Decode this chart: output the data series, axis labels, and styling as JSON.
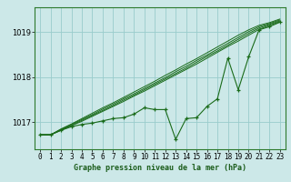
{
  "bg_color": "#cce8e8",
  "grid_color": "#99cccc",
  "line_color": "#1a6b1a",
  "xlabel": "Graphe pression niveau de la mer (hPa)",
  "xlim": [
    -0.5,
    23.5
  ],
  "ylim": [
    1016.4,
    1019.55
  ],
  "yticks": [
    1017,
    1018,
    1019
  ],
  "xticks": [
    0,
    1,
    2,
    3,
    4,
    5,
    6,
    7,
    8,
    9,
    10,
    11,
    12,
    13,
    14,
    15,
    16,
    17,
    18,
    19,
    20,
    21,
    22,
    23
  ],
  "main_x": [
    0,
    1,
    2,
    3,
    4,
    5,
    6,
    7,
    8,
    9,
    10,
    11,
    12,
    13,
    14,
    15,
    16,
    17,
    18,
    19,
    20,
    21,
    22,
    23
  ],
  "main_y": [
    1016.72,
    1016.72,
    1016.82,
    1016.9,
    1016.95,
    1016.98,
    1017.03,
    1017.08,
    1017.1,
    1017.18,
    1017.32,
    1017.28,
    1017.28,
    1016.62,
    1017.08,
    1017.1,
    1017.35,
    1017.52,
    1018.42,
    1017.72,
    1018.45,
    1019.05,
    1019.12,
    1019.22
  ],
  "forecast_lines": [
    [
      1016.72,
      1016.72,
      1016.82,
      1016.92,
      1017.02,
      1017.13,
      1017.24,
      1017.35,
      1017.46,
      1017.58,
      1017.69,
      1017.81,
      1017.93,
      1018.05,
      1018.17,
      1018.29,
      1018.42,
      1018.55,
      1018.68,
      1018.8,
      1018.93,
      1019.06,
      1019.15,
      1019.23
    ],
    [
      1016.72,
      1016.72,
      1016.83,
      1016.93,
      1017.04,
      1017.15,
      1017.26,
      1017.37,
      1017.49,
      1017.6,
      1017.72,
      1017.84,
      1017.96,
      1018.08,
      1018.2,
      1018.33,
      1018.46,
      1018.58,
      1018.71,
      1018.84,
      1018.97,
      1019.09,
      1019.17,
      1019.25
    ],
    [
      1016.72,
      1016.72,
      1016.84,
      1016.95,
      1017.06,
      1017.17,
      1017.29,
      1017.4,
      1017.52,
      1017.63,
      1017.75,
      1017.87,
      1017.99,
      1018.12,
      1018.24,
      1018.37,
      1018.49,
      1018.62,
      1018.75,
      1018.88,
      1019.01,
      1019.12,
      1019.19,
      1019.27
    ],
    [
      1016.72,
      1016.72,
      1016.85,
      1016.96,
      1017.08,
      1017.2,
      1017.32,
      1017.43,
      1017.55,
      1017.67,
      1017.79,
      1017.91,
      1018.04,
      1018.16,
      1018.29,
      1018.41,
      1018.54,
      1018.67,
      1018.8,
      1018.93,
      1019.05,
      1019.15,
      1019.21,
      1019.29
    ]
  ],
  "xlabel_fontsize": 6.0,
  "tick_fontsize": 5.5,
  "ytick_fontsize": 6.0
}
